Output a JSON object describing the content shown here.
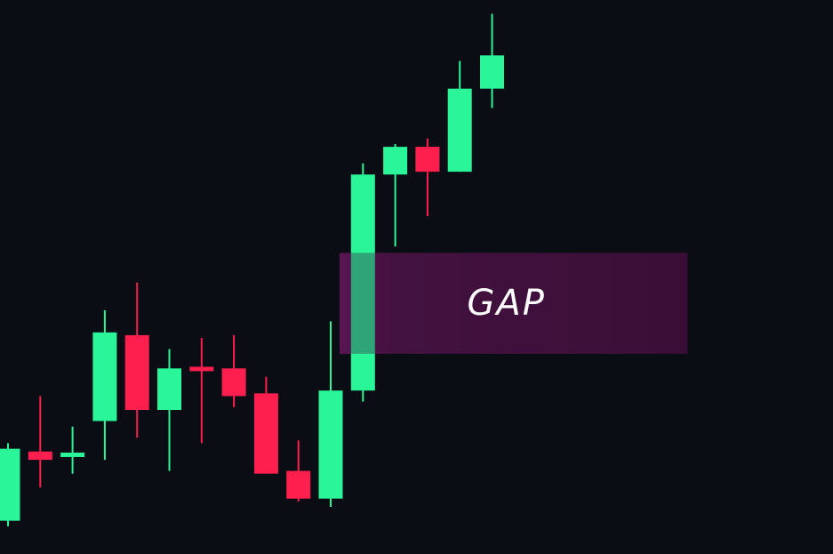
{
  "chart_data": {
    "type": "candlestick",
    "title": "",
    "xlabel": "",
    "ylabel": "",
    "ylim": [
      0,
      100
    ],
    "grid": false,
    "colors": {
      "background": "#0a0d14",
      "bullish": "#2af598",
      "bearish": "#ff1f4f",
      "gap_fill": "#3a0f36",
      "gap_line": "#ff14c8",
      "gap_text": "#ffffff"
    },
    "candles": [
      {
        "open": 6,
        "high": 20,
        "low": 5,
        "close": 19,
        "dir": "up"
      },
      {
        "open": 18.5,
        "high": 28.5,
        "low": 12,
        "close": 17,
        "dir": "down"
      },
      {
        "open": 17.5,
        "high": 23,
        "low": 14.5,
        "close": 18.3,
        "dir": "up"
      },
      {
        "open": 24,
        "high": 44,
        "low": 17,
        "close": 40,
        "dir": "up"
      },
      {
        "open": 39.5,
        "high": 49,
        "low": 21,
        "close": 26,
        "dir": "down"
      },
      {
        "open": 26,
        "high": 37,
        "low": 15,
        "close": 33.5,
        "dir": "up"
      },
      {
        "open": 33.8,
        "high": 39,
        "low": 20,
        "close": 33,
        "dir": "down"
      },
      {
        "open": 33.5,
        "high": 39.5,
        "low": 26.5,
        "close": 28.5,
        "dir": "down"
      },
      {
        "open": 29,
        "high": 32,
        "low": 14.5,
        "close": 14.5,
        "dir": "down"
      },
      {
        "open": 15,
        "high": 20.5,
        "low": 9.5,
        "close": 10,
        "dir": "down"
      },
      {
        "open": 10,
        "high": 42,
        "low": 8.5,
        "close": 29.5,
        "dir": "up"
      },
      {
        "open": 29.5,
        "high": 70.5,
        "low": 27.5,
        "close": 68.5,
        "dir": "up"
      },
      {
        "open": 68.5,
        "high": 74,
        "low": 55.5,
        "close": 73.5,
        "dir": "up"
      },
      {
        "open": 73.5,
        "high": 75,
        "low": 61,
        "close": 69,
        "dir": "down"
      },
      {
        "open": 69,
        "high": 89,
        "low": 69,
        "close": 84,
        "dir": "up"
      },
      {
        "open": 84,
        "high": 97.5,
        "low": 80.5,
        "close": 90,
        "dir": "up"
      }
    ],
    "gap_zone": {
      "label": "GAP",
      "upper": 55,
      "lower": 35.5,
      "from_candle": 10,
      "to_candle": 21
    }
  }
}
